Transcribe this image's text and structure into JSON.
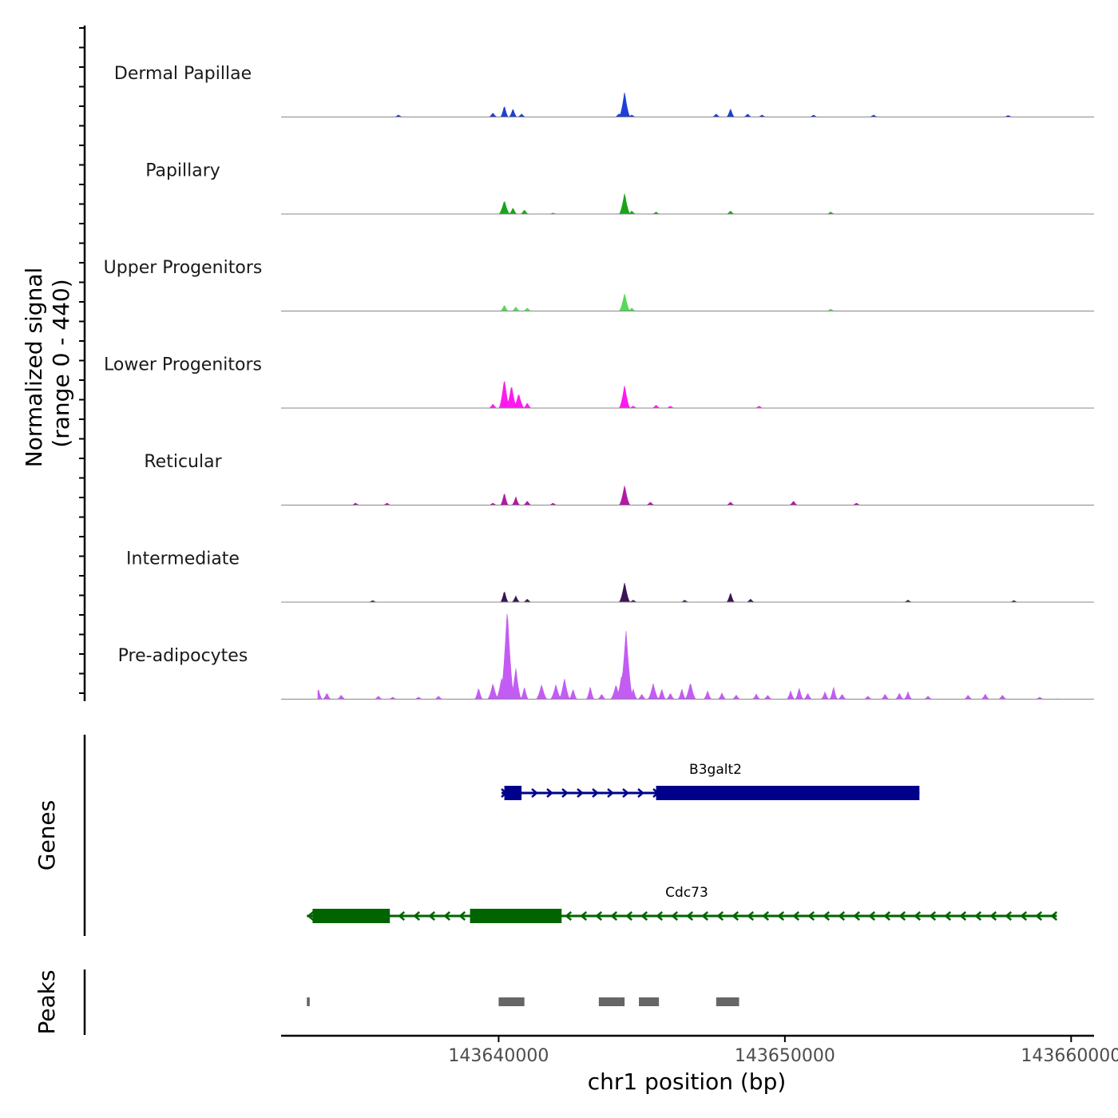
{
  "chart_data": {
    "type": "area",
    "title": "",
    "ylabel_line1": "Normalized signal",
    "ylabel_line2": "(range 0 - 440)",
    "yrange": [
      0,
      440
    ],
    "xlabel": "chr1 position (bp)",
    "xlim": [
      143632400,
      143660800
    ],
    "xticks": [
      143640000,
      143650000,
      143660000
    ],
    "xtick_labels": [
      "143640000",
      "143650000",
      "143660000"
    ],
    "tracks": [
      {
        "name": "Dermal Papillae",
        "color": "#1f3fd6",
        "peaks": [
          [
            143633400,
            5
          ],
          [
            143636500,
            10
          ],
          [
            143639800,
            20
          ],
          [
            143640200,
            55
          ],
          [
            143640500,
            40
          ],
          [
            143640800,
            15
          ],
          [
            143644200,
            15
          ],
          [
            143644400,
            120
          ],
          [
            143644650,
            10
          ],
          [
            143647600,
            15
          ],
          [
            143648100,
            40
          ],
          [
            143648700,
            15
          ],
          [
            143649200,
            10
          ],
          [
            143651000,
            10
          ],
          [
            143653100,
            10
          ],
          [
            143657800,
            8
          ]
        ]
      },
      {
        "name": "Papillary",
        "color": "#1aa31a",
        "peaks": [
          [
            143640200,
            65
          ],
          [
            143640500,
            30
          ],
          [
            143640900,
            20
          ],
          [
            143641900,
            5
          ],
          [
            143644400,
            100
          ],
          [
            143644650,
            15
          ],
          [
            143645500,
            10
          ],
          [
            143648100,
            15
          ],
          [
            143651600,
            10
          ]
        ]
      },
      {
        "name": "Upper Progenitors",
        "color": "#57d957",
        "peaks": [
          [
            143640200,
            30
          ],
          [
            143640600,
            20
          ],
          [
            143641000,
            15
          ],
          [
            143644400,
            85
          ],
          [
            143644650,
            15
          ],
          [
            143651600,
            10
          ]
        ]
      },
      {
        "name": "Lower Progenitors",
        "color": "#ff19ef",
        "peaks": [
          [
            143639800,
            20
          ],
          [
            143640200,
            140
          ],
          [
            143640450,
            110
          ],
          [
            143640700,
            70
          ],
          [
            143641000,
            25
          ],
          [
            143644400,
            110
          ],
          [
            143644700,
            10
          ],
          [
            143645500,
            15
          ],
          [
            143646000,
            10
          ],
          [
            143649100,
            10
          ]
        ]
      },
      {
        "name": "Reticular",
        "color": "#b01aa6",
        "peaks": [
          [
            143635000,
            10
          ],
          [
            143636100,
            10
          ],
          [
            143639800,
            10
          ],
          [
            143640200,
            60
          ],
          [
            143640600,
            40
          ],
          [
            143641000,
            20
          ],
          [
            143641900,
            10
          ],
          [
            143644400,
            95
          ],
          [
            143645300,
            15
          ],
          [
            143648100,
            15
          ],
          [
            143650300,
            20
          ],
          [
            143652500,
            10
          ]
        ]
      },
      {
        "name": "Intermediate",
        "color": "#3a1555",
        "peaks": [
          [
            143635600,
            8
          ],
          [
            143640200,
            55
          ],
          [
            143640600,
            30
          ],
          [
            143641000,
            15
          ],
          [
            143644400,
            95
          ],
          [
            143644700,
            10
          ],
          [
            143646500,
            10
          ],
          [
            143648100,
            45
          ],
          [
            143648800,
            15
          ],
          [
            143654300,
            10
          ],
          [
            143658000,
            8
          ]
        ]
      },
      {
        "name": "Pre-adipocytes",
        "color": "#c35cf2",
        "peaks": [
          [
            143633400,
            65
          ],
          [
            143633700,
            50
          ],
          [
            143634000,
            30
          ],
          [
            143634500,
            20
          ],
          [
            143635800,
            15
          ],
          [
            143636300,
            10
          ],
          [
            143637200,
            10
          ],
          [
            143637900,
            15
          ],
          [
            143639300,
            55
          ],
          [
            143639800,
            75
          ],
          [
            143640100,
            100
          ],
          [
            143640300,
            440
          ],
          [
            143640600,
            150
          ],
          [
            143640900,
            60
          ],
          [
            143641500,
            70
          ],
          [
            143642000,
            70
          ],
          [
            143642300,
            100
          ],
          [
            143642600,
            50
          ],
          [
            143643200,
            60
          ],
          [
            143643600,
            25
          ],
          [
            143644100,
            70
          ],
          [
            143644300,
            120
          ],
          [
            143644450,
            330
          ],
          [
            143644700,
            50
          ],
          [
            143645000,
            25
          ],
          [
            143645400,
            75
          ],
          [
            143645700,
            50
          ],
          [
            143646000,
            30
          ],
          [
            143646400,
            50
          ],
          [
            143646700,
            80
          ],
          [
            143647300,
            40
          ],
          [
            143647800,
            30
          ],
          [
            143648300,
            20
          ],
          [
            143649000,
            25
          ],
          [
            143649400,
            20
          ],
          [
            143650200,
            40
          ],
          [
            143650500,
            55
          ],
          [
            143650800,
            30
          ],
          [
            143651400,
            35
          ],
          [
            143651700,
            60
          ],
          [
            143652000,
            25
          ],
          [
            143652900,
            15
          ],
          [
            143653500,
            25
          ],
          [
            143654000,
            30
          ],
          [
            143654300,
            35
          ],
          [
            143655000,
            15
          ],
          [
            143656400,
            20
          ],
          [
            143657000,
            25
          ],
          [
            143657600,
            20
          ],
          [
            143658900,
            10
          ],
          [
            143659600,
            5
          ]
        ]
      }
    ],
    "genes_title": "Genes",
    "genes": [
      {
        "name": "B3galt2",
        "strand": "+",
        "color": "#00008b",
        "start": 143640100,
        "end": 143654700,
        "exons": [
          [
            143640200,
            143640800
          ],
          [
            143645500,
            143654700
          ]
        ]
      },
      {
        "name": "Cdc73",
        "strand": "-",
        "color": "#006400",
        "start": 143633300,
        "end": 143659500,
        "exons": [
          [
            143633500,
            143636200
          ],
          [
            143639000,
            143642200
          ]
        ]
      }
    ],
    "peaks_title": "Peaks",
    "peak_regions": [
      [
        143633300,
        143633400
      ],
      [
        143640000,
        143640900
      ],
      [
        143643500,
        143644400
      ],
      [
        143644900,
        143645600
      ],
      [
        143647600,
        143648400
      ]
    ]
  }
}
